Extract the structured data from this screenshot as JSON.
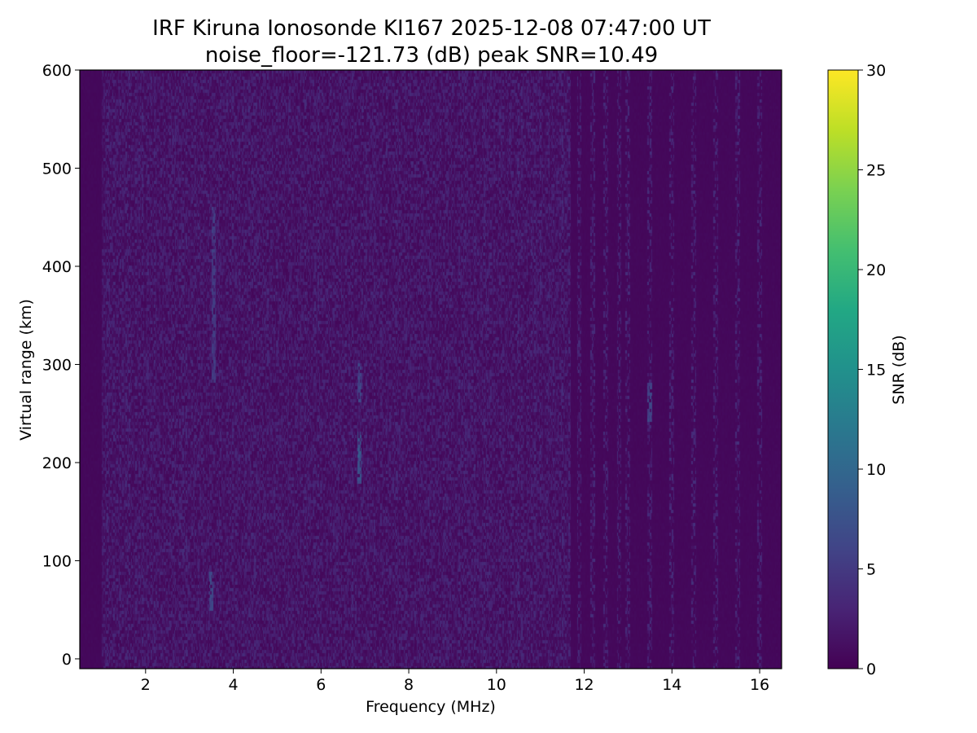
{
  "chart_data": {
    "type": "heatmap",
    "title_line1": "IRF Kiruna Ionosonde KI167 2025-12-08 07:47:00  UT",
    "title_line2": "noise_floor=-121.73 (dB) peak SNR=10.49",
    "xlabel": "Frequency (MHz)",
    "ylabel": "Virtual range (km)",
    "xlim": [
      0.5,
      16.5
    ],
    "ylim": [
      -10,
      600
    ],
    "x_ticks": [
      2,
      4,
      6,
      8,
      10,
      12,
      14,
      16
    ],
    "y_ticks": [
      0,
      100,
      200,
      300,
      400,
      500,
      600
    ],
    "colorbar": {
      "label": "SNR (dB)",
      "range": [
        0,
        30
      ],
      "ticks": [
        0,
        5,
        10,
        15,
        20,
        25,
        30
      ],
      "colormap": "viridis"
    },
    "noise_floor_db": -121.73,
    "peak_snr_db": 10.49,
    "freq_range_mhz": [
      0.5,
      16.5
    ],
    "range_range_km": [
      -10,
      600
    ],
    "background_snr_db": 0.5,
    "noisy_band_mhz": [
      1.0,
      11.7
    ],
    "noisy_band_typical_snr_db": [
      1,
      5
    ],
    "clean_band_mhz": [
      11.7,
      16.5
    ],
    "interference_lines_mhz": [
      11.9,
      12.2,
      12.5,
      12.8,
      13.0,
      13.5,
      14.0,
      14.5,
      15.0,
      15.5,
      16.0
    ],
    "noted_features": [
      {
        "freq_mhz": 3.5,
        "range_km": [
          50,
          90
        ],
        "snr_db": 8
      },
      {
        "freq_mhz": 3.55,
        "range_km": [
          280,
          460
        ],
        "snr_db": 6
      },
      {
        "freq_mhz": 6.9,
        "range_km": [
          180,
          230
        ],
        "snr_db": 9
      },
      {
        "freq_mhz": 6.9,
        "range_km": [
          260,
          300
        ],
        "snr_db": 7
      },
      {
        "freq_mhz": 13.5,
        "range_km": [
          240,
          280
        ],
        "snr_db": 7
      }
    ]
  }
}
